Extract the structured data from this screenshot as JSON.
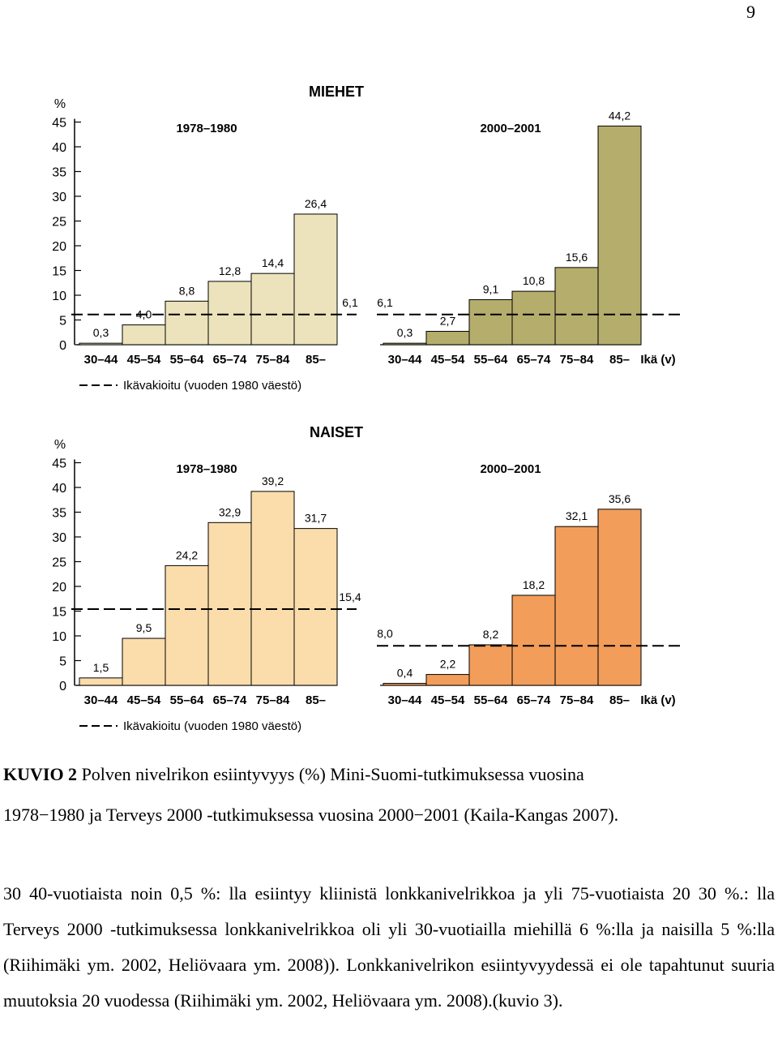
{
  "page_number": "9",
  "caption": {
    "label": "KUVIO 2",
    "line1": "Polven nivelrikon esiintyvyys (%) Mini-Suomi-tutkimuksessa vuosina",
    "line2": "1978−1980 ja Terveys 2000 -tutkimuksessa vuosina 2000−2001 (Kaila-Kangas 2007)."
  },
  "paragraph": "30 40-vuotiaista noin 0,5 %: lla esiintyy kliinistä lonkkanivelrikkoa ja yli 75-vuotiaista 20 30 %.: lla Terveys 2000 -tutkimuksessa lonkkanivelrikkoa oli yli 30-vuotiailla miehillä 6 %:lla ja naisilla 5 %:lla (Riihimäki ym. 2002, Heliövaara ym. 2008)). Lonkkanivelrikon esiintyvyydessä ei ole tapahtunut suuria muutoksia 20 vuodessa (Riihimäki ym. 2002, Heliövaara ym. 2008).(kuvio 3).",
  "chart_data": [
    {
      "type": "bar",
      "title": "MIEHET",
      "ylabel": "%",
      "xlabel": "Ikä (v)",
      "ylim": [
        0,
        45
      ],
      "yticks": [
        "0",
        "5",
        "10",
        "15",
        "20",
        "25",
        "30",
        "35",
        "40",
        "45"
      ],
      "categories": [
        "30–44",
        "45–54",
        "55–64",
        "65–74",
        "75–84",
        "85–"
      ],
      "legend": "Ikävakioitu (vuoden 1980 väestö)",
      "series": [
        {
          "name": "1978–1980",
          "values": [
            0.3,
            4.0,
            8.8,
            12.8,
            14.4,
            26.4
          ],
          "labels": [
            "0,3",
            "4,0",
            "8,8",
            "12,8",
            "14,4",
            "26,4"
          ],
          "age_adjusted": 6.1,
          "age_adjusted_label": "6,1",
          "color": "#ece3bc"
        },
        {
          "name": "2000–2001",
          "values": [
            0.3,
            2.7,
            9.1,
            10.8,
            15.6,
            44.2
          ],
          "labels": [
            "0,3",
            "2,7",
            "9,1",
            "10,8",
            "15,6",
            "44,2"
          ],
          "age_adjusted": 6.1,
          "age_adjusted_label": "6,1",
          "color": "#b5ad6c"
        }
      ]
    },
    {
      "type": "bar",
      "title": "NAISET",
      "ylabel": "%",
      "xlabel": "Ikä (v)",
      "ylim": [
        0,
        45
      ],
      "yticks": [
        "0",
        "5",
        "10",
        "15",
        "20",
        "25",
        "30",
        "35",
        "40",
        "45"
      ],
      "categories": [
        "30–44",
        "45–54",
        "55–64",
        "65–74",
        "75–84",
        "85–"
      ],
      "legend": "Ikävakioitu (vuoden 1980 väestö)",
      "series": [
        {
          "name": "1978–1980",
          "values": [
            1.5,
            9.5,
            24.2,
            32.9,
            39.2,
            31.7
          ],
          "labels": [
            "1,5",
            "9,5",
            "24,2",
            "32,9",
            "39,2",
            "31,7"
          ],
          "age_adjusted": 15.4,
          "age_adjusted_label": "15,4",
          "color": "#fbdcab"
        },
        {
          "name": "2000–2001",
          "values": [
            0.4,
            2.2,
            8.2,
            18.2,
            32.1,
            35.6
          ],
          "labels": [
            "0,4",
            "2,2",
            "8,2",
            "18,2",
            "32,1",
            "35,6"
          ],
          "age_adjusted": 8.0,
          "age_adjusted_label": "8,0",
          "color": "#f29d5a"
        }
      ]
    }
  ]
}
